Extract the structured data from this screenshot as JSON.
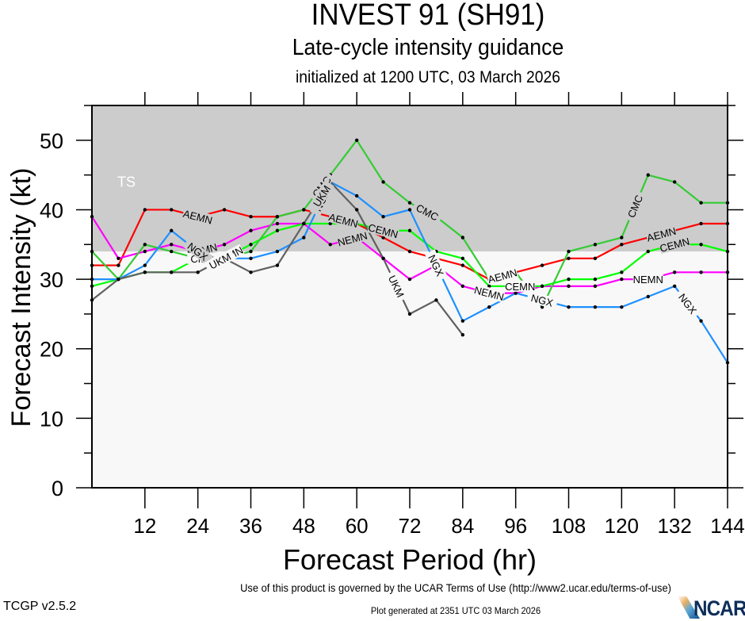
{
  "header": {
    "title": "INVEST 91 (SH91)",
    "subtitle": "Late-cycle intensity guidance",
    "init": "initialized at 1200 UTC, 03 March 2026"
  },
  "footer": {
    "terms": "Use of this product is governed by the UCAR Terms of Use (http://www2.ucar.edu/terms-of-use)",
    "generated": "Plot generated at 2351 UTC   03 March 2026",
    "version": "TCGP v2.5.2",
    "logo": "NCAR"
  },
  "chart_data": {
    "type": "line",
    "title": "INVEST 91 (SH91)",
    "xlabel": "Forecast Period (hr)",
    "ylabel": "Forecast Intensity (kt)",
    "xlim": [
      0,
      144
    ],
    "ylim": [
      0,
      55
    ],
    "xticks": [
      12,
      24,
      36,
      48,
      60,
      72,
      84,
      96,
      108,
      120,
      132,
      144
    ],
    "yticks": [
      0,
      10,
      20,
      30,
      40,
      50
    ],
    "threshold_band": {
      "label": "TS",
      "from": 34,
      "to": 55,
      "color": "#cccccc"
    },
    "series": [
      {
        "name": "AEMN",
        "color": "#ff0000",
        "x": [
          0,
          6,
          12,
          18,
          24,
          30,
          36,
          42,
          48,
          54,
          60,
          66,
          72,
          78,
          84,
          90,
          96,
          102,
          108,
          114,
          120,
          126,
          132,
          138,
          144
        ],
        "y": [
          32,
          32,
          40,
          40,
          39,
          40,
          39,
          39,
          40,
          39,
          38,
          36,
          34,
          33,
          32,
          30,
          31,
          32,
          33,
          33,
          35,
          36,
          37,
          38,
          38
        ],
        "labels_at": [
          24,
          57,
          93,
          129
        ]
      },
      {
        "name": "NEMN",
        "color": "#ff00ff",
        "x": [
          0,
          6,
          12,
          18,
          24,
          30,
          36,
          42,
          48,
          54,
          60,
          66,
          72,
          78,
          84,
          90,
          96,
          102,
          108,
          114,
          120,
          126,
          132,
          138,
          144
        ],
        "y": [
          39,
          33,
          34,
          35,
          34,
          35,
          37,
          38,
          38,
          35,
          36,
          33,
          30,
          32,
          29,
          28,
          28,
          29,
          29,
          29,
          30,
          30,
          31,
          31,
          31
        ],
        "labels_at": [
          25,
          59,
          90,
          126
        ]
      },
      {
        "name": "CEMN",
        "color": "#00ff00",
        "x": [
          0,
          6,
          12,
          18,
          24,
          30,
          36,
          42,
          48,
          54,
          60,
          66,
          72,
          78,
          84,
          90,
          96,
          102,
          108,
          114,
          120,
          126,
          132,
          138,
          144
        ],
        "y": [
          29,
          30,
          31,
          31,
          33,
          33,
          35,
          37,
          38,
          38,
          38,
          37,
          37,
          34,
          33,
          29,
          29,
          29,
          30,
          30,
          31,
          34,
          35,
          35,
          34
        ],
        "labels_at": [
          31,
          66,
          97,
          132
        ]
      },
      {
        "name": "CMC",
        "color": "#33cc33",
        "x": [
          0,
          6,
          12,
          18,
          24,
          30,
          36,
          42,
          48,
          54,
          60,
          66,
          72,
          78,
          84,
          90,
          96,
          102,
          108,
          114,
          120,
          126,
          132,
          138,
          144
        ],
        "y": [
          34,
          30,
          35,
          34,
          33,
          33,
          34,
          39,
          40,
          45,
          50,
          44,
          41,
          39,
          36,
          30,
          31,
          26,
          34,
          35,
          36,
          45,
          44,
          41,
          41
        ],
        "labels_at": [
          25,
          52,
          76,
          123
        ]
      },
      {
        "name": "NGX",
        "color": "#1e90ff",
        "x": [
          0,
          6,
          12,
          18,
          24,
          30,
          36,
          42,
          48,
          54,
          60,
          66,
          72,
          78,
          84,
          90,
          96,
          102,
          108,
          114,
          120,
          126,
          132,
          138,
          144
        ],
        "y": [
          30,
          30,
          32,
          37,
          34,
          33,
          33,
          34,
          36,
          44,
          42,
          39,
          40,
          32,
          24,
          26,
          28,
          27,
          26,
          26,
          26,
          27.5,
          29,
          24,
          18
        ],
        "labels_at": [
          24,
          52,
          78,
          102,
          135
        ]
      },
      {
        "name": "UKM",
        "color": "#606060",
        "x": [
          0,
          6,
          12,
          18,
          24,
          30,
          36,
          42,
          48,
          54,
          60,
          66,
          72,
          78,
          84
        ],
        "y": [
          27,
          30,
          31,
          31,
          31,
          33,
          31,
          32,
          38,
          44,
          40,
          33,
          25,
          27,
          22
        ],
        "labels_at": [
          29,
          52,
          69
        ]
      }
    ]
  }
}
